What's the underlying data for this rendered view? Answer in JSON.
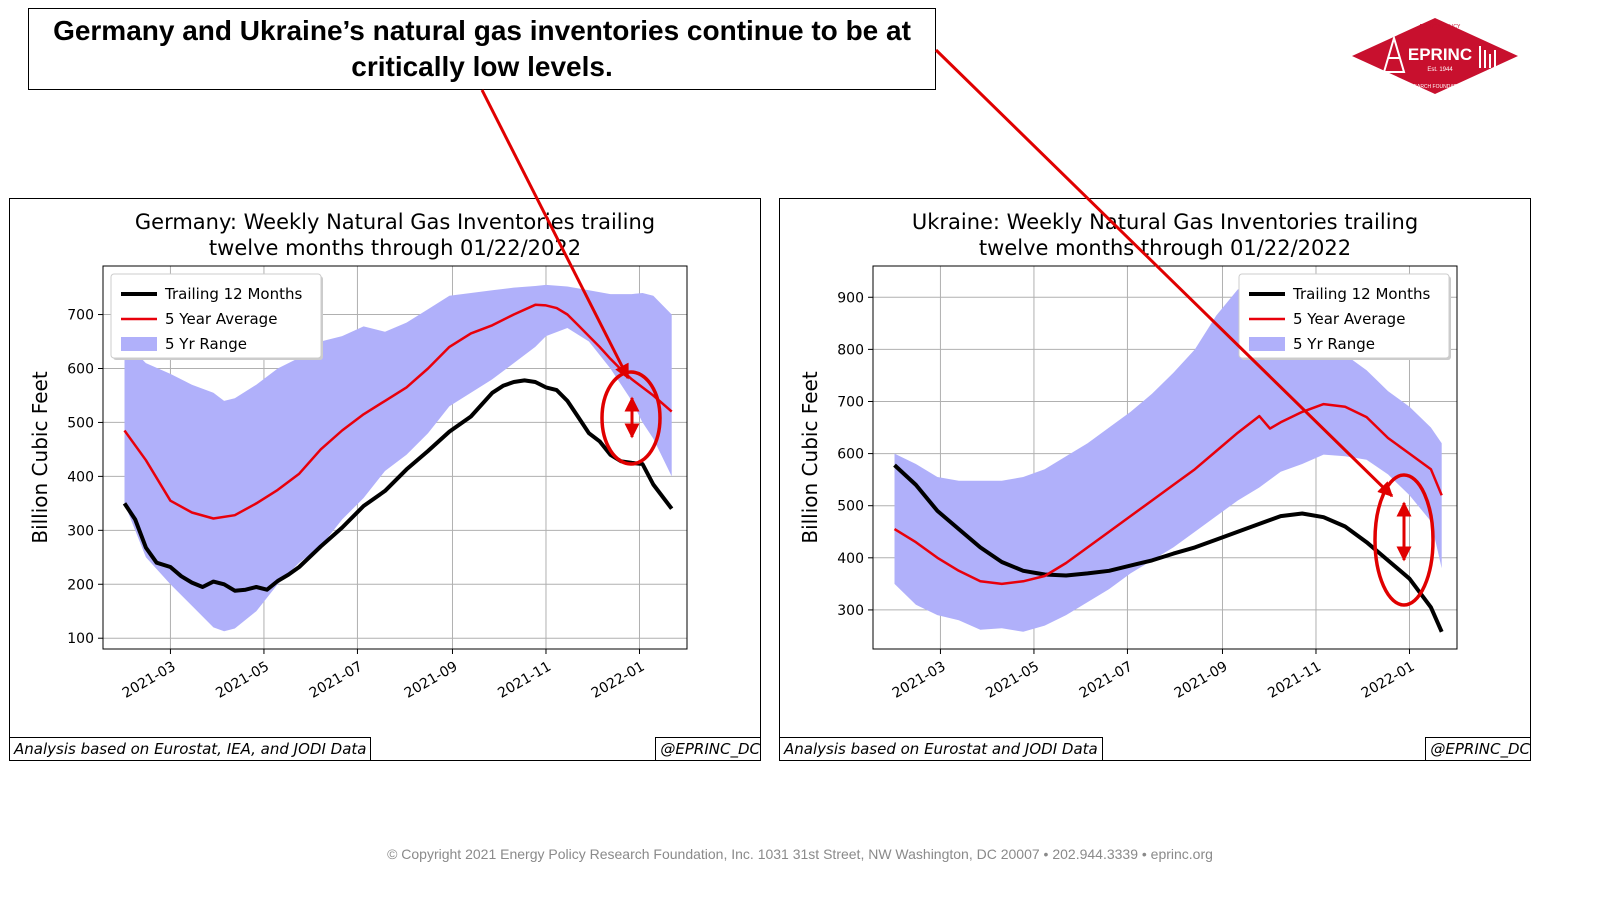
{
  "headline": "Germany and Ukraine’s natural gas inventories continue to be at critically low levels.",
  "logo": {
    "text": "EPRINC",
    "est": "Est. 1944",
    "ring_top": "ENERGY POLICY",
    "ring_bottom": "RESEARCH FOUNDATION INC."
  },
  "footer": "© Copyright 2021 Energy Policy Research Foundation, Inc. 1031 31st Street, NW Washington, DC 20007 • 202.944.3339 • eprinc.org",
  "colors": {
    "series": "#000000",
    "average": "#e8000b",
    "range": "#b0b0fa",
    "annotation": "#e00000"
  },
  "charts": [
    {
      "source": "Analysis based on Eurostat, IEA,  and JODI Data",
      "handle": "@EPRINC_DC"
    },
    {
      "source": "Analysis based on Eurostat and JODI Data",
      "handle": "@EPRINC_DC"
    }
  ],
  "chart_data": [
    {
      "type": "line",
      "title": "Germany: Weekly Natural Gas Inventories trailing twelve months through 01/22/2022",
      "title_lines": [
        "Germany: Weekly Natural Gas Inventories trailing",
        "twelve months through 01/22/2022"
      ],
      "ylabel": "Billion Cubic Feet",
      "xlabel": "",
      "x_ticks": [
        "2021-03",
        "2021-05",
        "2021-07",
        "2021-09",
        "2021-11",
        "2022-01"
      ],
      "y_ticks": [
        100,
        200,
        300,
        400,
        500,
        600,
        700
      ],
      "xlim": [
        "2021-01-16",
        "2022-02-01"
      ],
      "ylim": [
        80,
        790
      ],
      "grid": true,
      "legend": "top-left",
      "series": [
        {
          "name": "Trailing 12 Months",
          "kind": "line",
          "color": "#000000",
          "x": [
            "2021-01-30",
            "2021-02-06",
            "2021-02-13",
            "2021-02-20",
            "2021-03-01",
            "2021-03-08",
            "2021-03-15",
            "2021-03-22",
            "2021-03-29",
            "2021-04-05",
            "2021-04-12",
            "2021-04-19",
            "2021-04-26",
            "2021-05-03",
            "2021-05-10",
            "2021-05-17",
            "2021-05-24",
            "2021-06-07",
            "2021-06-21",
            "2021-07-05",
            "2021-07-19",
            "2021-08-02",
            "2021-08-16",
            "2021-08-30",
            "2021-09-13",
            "2021-09-27",
            "2021-10-04",
            "2021-10-11",
            "2021-10-18",
            "2021-10-25",
            "2021-11-01",
            "2021-11-08",
            "2021-11-15",
            "2021-11-22",
            "2021-11-29",
            "2021-12-06",
            "2021-12-13",
            "2021-12-20",
            "2021-12-27",
            "2022-01-03",
            "2022-01-10",
            "2022-01-22"
          ],
          "values": [
            350,
            320,
            268,
            240,
            232,
            215,
            203,
            195,
            205,
            200,
            188,
            190,
            195,
            190,
            206,
            218,
            232,
            270,
            305,
            345,
            373,
            413,
            447,
            483,
            511,
            555,
            568,
            575,
            578,
            575,
            565,
            560,
            540,
            510,
            480,
            465,
            440,
            428,
            425,
            423,
            385,
            340
          ]
        },
        {
          "name": "5 Year Average",
          "kind": "line",
          "color": "#e8000b",
          "x": [
            "2021-01-30",
            "2021-02-13",
            "2021-03-01",
            "2021-03-15",
            "2021-03-29",
            "2021-04-12",
            "2021-04-26",
            "2021-05-10",
            "2021-05-24",
            "2021-06-07",
            "2021-06-21",
            "2021-07-05",
            "2021-07-19",
            "2021-08-02",
            "2021-08-16",
            "2021-08-30",
            "2021-09-13",
            "2021-09-27",
            "2021-10-11",
            "2021-10-25",
            "2021-11-01",
            "2021-11-08",
            "2021-11-15",
            "2021-11-22",
            "2021-11-29",
            "2021-12-06",
            "2021-12-13",
            "2021-12-20",
            "2021-12-27",
            "2022-01-03",
            "2022-01-10",
            "2022-01-22"
          ],
          "values": [
            485,
            430,
            355,
            333,
            322,
            328,
            350,
            375,
            405,
            450,
            485,
            515,
            540,
            565,
            600,
            640,
            665,
            680,
            700,
            718,
            717,
            712,
            700,
            680,
            660,
            640,
            618,
            598,
            580,
            565,
            550,
            520
          ]
        },
        {
          "name": "5 Yr Range",
          "kind": "band",
          "color": "#b0b0fa",
          "x": [
            "2021-01-30",
            "2021-02-13",
            "2021-03-01",
            "2021-03-15",
            "2021-03-29",
            "2021-04-05",
            "2021-04-12",
            "2021-04-26",
            "2021-05-10",
            "2021-05-24",
            "2021-06-07",
            "2021-06-21",
            "2021-07-05",
            "2021-07-19",
            "2021-08-02",
            "2021-08-16",
            "2021-08-30",
            "2021-09-13",
            "2021-09-27",
            "2021-10-11",
            "2021-10-25",
            "2021-11-01",
            "2021-11-15",
            "2021-11-29",
            "2021-12-13",
            "2021-12-27",
            "2022-01-03",
            "2022-01-10",
            "2022-01-22"
          ],
          "low": [
            350,
            250,
            200,
            160,
            120,
            113,
            118,
            150,
            200,
            240,
            270,
            320,
            360,
            410,
            440,
            480,
            530,
            555,
            580,
            610,
            640,
            660,
            675,
            650,
            600,
            540,
            500,
            470,
            400
          ],
          "high": [
            650,
            610,
            590,
            570,
            555,
            540,
            545,
            570,
            600,
            620,
            650,
            660,
            678,
            668,
            685,
            710,
            735,
            740,
            745,
            750,
            753,
            755,
            752,
            745,
            738,
            738,
            740,
            735,
            700
          ]
        }
      ]
    },
    {
      "type": "line",
      "title": "Ukraine: Weekly Natural Gas Inventories trailing twelve months through 01/22/2022",
      "title_lines": [
        "Ukraine: Weekly Natural Gas Inventories trailing",
        "twelve months through 01/22/2022"
      ],
      "ylabel": "Billion Cubic Feet",
      "xlabel": "",
      "x_ticks": [
        "2021-03",
        "2021-05",
        "2021-07",
        "2021-09",
        "2021-11",
        "2022-01"
      ],
      "y_ticks": [
        300,
        400,
        500,
        600,
        700,
        800,
        900
      ],
      "xlim": [
        "2021-01-16",
        "2022-02-01"
      ],
      "ylim": [
        225,
        960
      ],
      "grid": true,
      "legend": "top-right",
      "series": [
        {
          "name": "Trailing 12 Months",
          "kind": "line",
          "color": "#000000",
          "x": [
            "2021-01-30",
            "2021-02-13",
            "2021-02-27",
            "2021-03-13",
            "2021-03-27",
            "2021-04-10",
            "2021-04-24",
            "2021-05-08",
            "2021-05-22",
            "2021-06-05",
            "2021-06-19",
            "2021-07-03",
            "2021-07-17",
            "2021-07-31",
            "2021-08-14",
            "2021-08-28",
            "2021-09-11",
            "2021-09-25",
            "2021-10-09",
            "2021-10-23",
            "2021-11-06",
            "2021-11-20",
            "2021-12-04",
            "2021-12-18",
            "2022-01-01",
            "2022-01-15",
            "2022-01-22"
          ],
          "values": [
            578,
            540,
            490,
            455,
            420,
            392,
            375,
            368,
            366,
            370,
            375,
            385,
            395,
            408,
            420,
            435,
            450,
            465,
            480,
            485,
            478,
            460,
            430,
            395,
            360,
            305,
            258
          ]
        },
        {
          "name": "5 Year Average",
          "kind": "line",
          "color": "#e8000b",
          "x": [
            "2021-01-30",
            "2021-02-13",
            "2021-02-27",
            "2021-03-13",
            "2021-03-27",
            "2021-04-10",
            "2021-04-24",
            "2021-05-08",
            "2021-05-22",
            "2021-06-05",
            "2021-06-19",
            "2021-07-03",
            "2021-07-17",
            "2021-07-31",
            "2021-08-14",
            "2021-08-28",
            "2021-09-11",
            "2021-09-25",
            "2021-10-02",
            "2021-10-09",
            "2021-10-23",
            "2021-11-06",
            "2021-11-20",
            "2021-12-04",
            "2021-12-18",
            "2022-01-01",
            "2022-01-15",
            "2022-01-22"
          ],
          "values": [
            455,
            430,
            400,
            375,
            355,
            350,
            355,
            365,
            390,
            420,
            450,
            480,
            510,
            540,
            570,
            605,
            640,
            672,
            648,
            660,
            680,
            695,
            690,
            670,
            630,
            600,
            570,
            520
          ]
        },
        {
          "name": "5 Yr Range",
          "kind": "band",
          "color": "#b0b0fa",
          "x": [
            "2021-01-30",
            "2021-02-13",
            "2021-02-27",
            "2021-03-13",
            "2021-03-27",
            "2021-04-10",
            "2021-04-24",
            "2021-05-08",
            "2021-05-22",
            "2021-06-05",
            "2021-06-19",
            "2021-07-03",
            "2021-07-17",
            "2021-07-31",
            "2021-08-14",
            "2021-08-28",
            "2021-09-11",
            "2021-09-25",
            "2021-10-09",
            "2021-10-23",
            "2021-11-06",
            "2021-11-20",
            "2021-12-04",
            "2021-12-18",
            "2022-01-01",
            "2022-01-15",
            "2022-01-22"
          ],
          "low": [
            350,
            310,
            290,
            280,
            262,
            265,
            258,
            270,
            290,
            315,
            340,
            370,
            395,
            420,
            450,
            480,
            510,
            535,
            565,
            580,
            598,
            595,
            588,
            560,
            520,
            470,
            380
          ],
          "high": [
            600,
            580,
            555,
            548,
            548,
            548,
            555,
            570,
            595,
            620,
            650,
            680,
            715,
            755,
            800,
            865,
            915,
            920,
            905,
            880,
            840,
            790,
            760,
            720,
            690,
            650,
            620
          ]
        }
      ]
    }
  ]
}
